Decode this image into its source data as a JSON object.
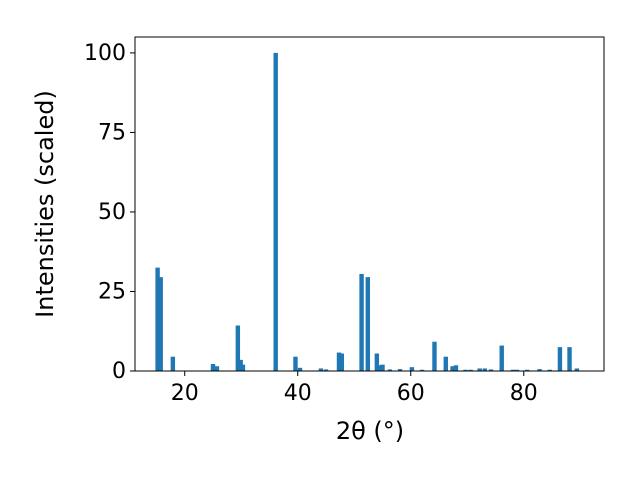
{
  "chart_data": {
    "type": "bar",
    "x_label": "2θ (°)",
    "y_label": "Intensities (scaled)",
    "x": [
      15.2,
      15.75,
      17.9,
      25.0,
      25.7,
      29.4,
      29.9,
      30.3,
      36.1,
      39.6,
      40.4,
      44.1,
      45.0,
      47.3,
      47.8,
      51.3,
      52.4,
      54.0,
      54.5,
      55.0,
      56.3,
      58.1,
      60.2,
      62.0,
      64.2,
      66.2,
      67.4,
      68.0,
      69.7,
      70.6,
      72.2,
      73.1,
      74.2,
      76.1,
      78.1,
      78.8,
      80.6,
      82.8,
      84.6,
      86.4,
      88.1,
      89.4
    ],
    "values": [
      32.5,
      29.5,
      4.5,
      2.2,
      1.5,
      14.3,
      3.5,
      2,
      100,
      4.5,
      1,
      0.8,
      0.5,
      5.8,
      5.5,
      30.5,
      29.5,
      5.5,
      1.8,
      2,
      0.5,
      0.6,
      1.2,
      0.4,
      9.2,
      4.5,
      1.5,
      1.8,
      0.4,
      0.4,
      0.8,
      0.8,
      0.5,
      8,
      0.4,
      0.4,
      0.4,
      0.6,
      0.4,
      7.5,
      7.5,
      0.8
    ],
    "color": "#1f77b4",
    "xlim": [
      11.2,
      94.2
    ],
    "xticks": [
      20,
      40,
      60,
      80
    ],
    "ylim": [
      0,
      105
    ],
    "yticks": [
      0,
      25,
      50,
      75,
      100
    ]
  }
}
